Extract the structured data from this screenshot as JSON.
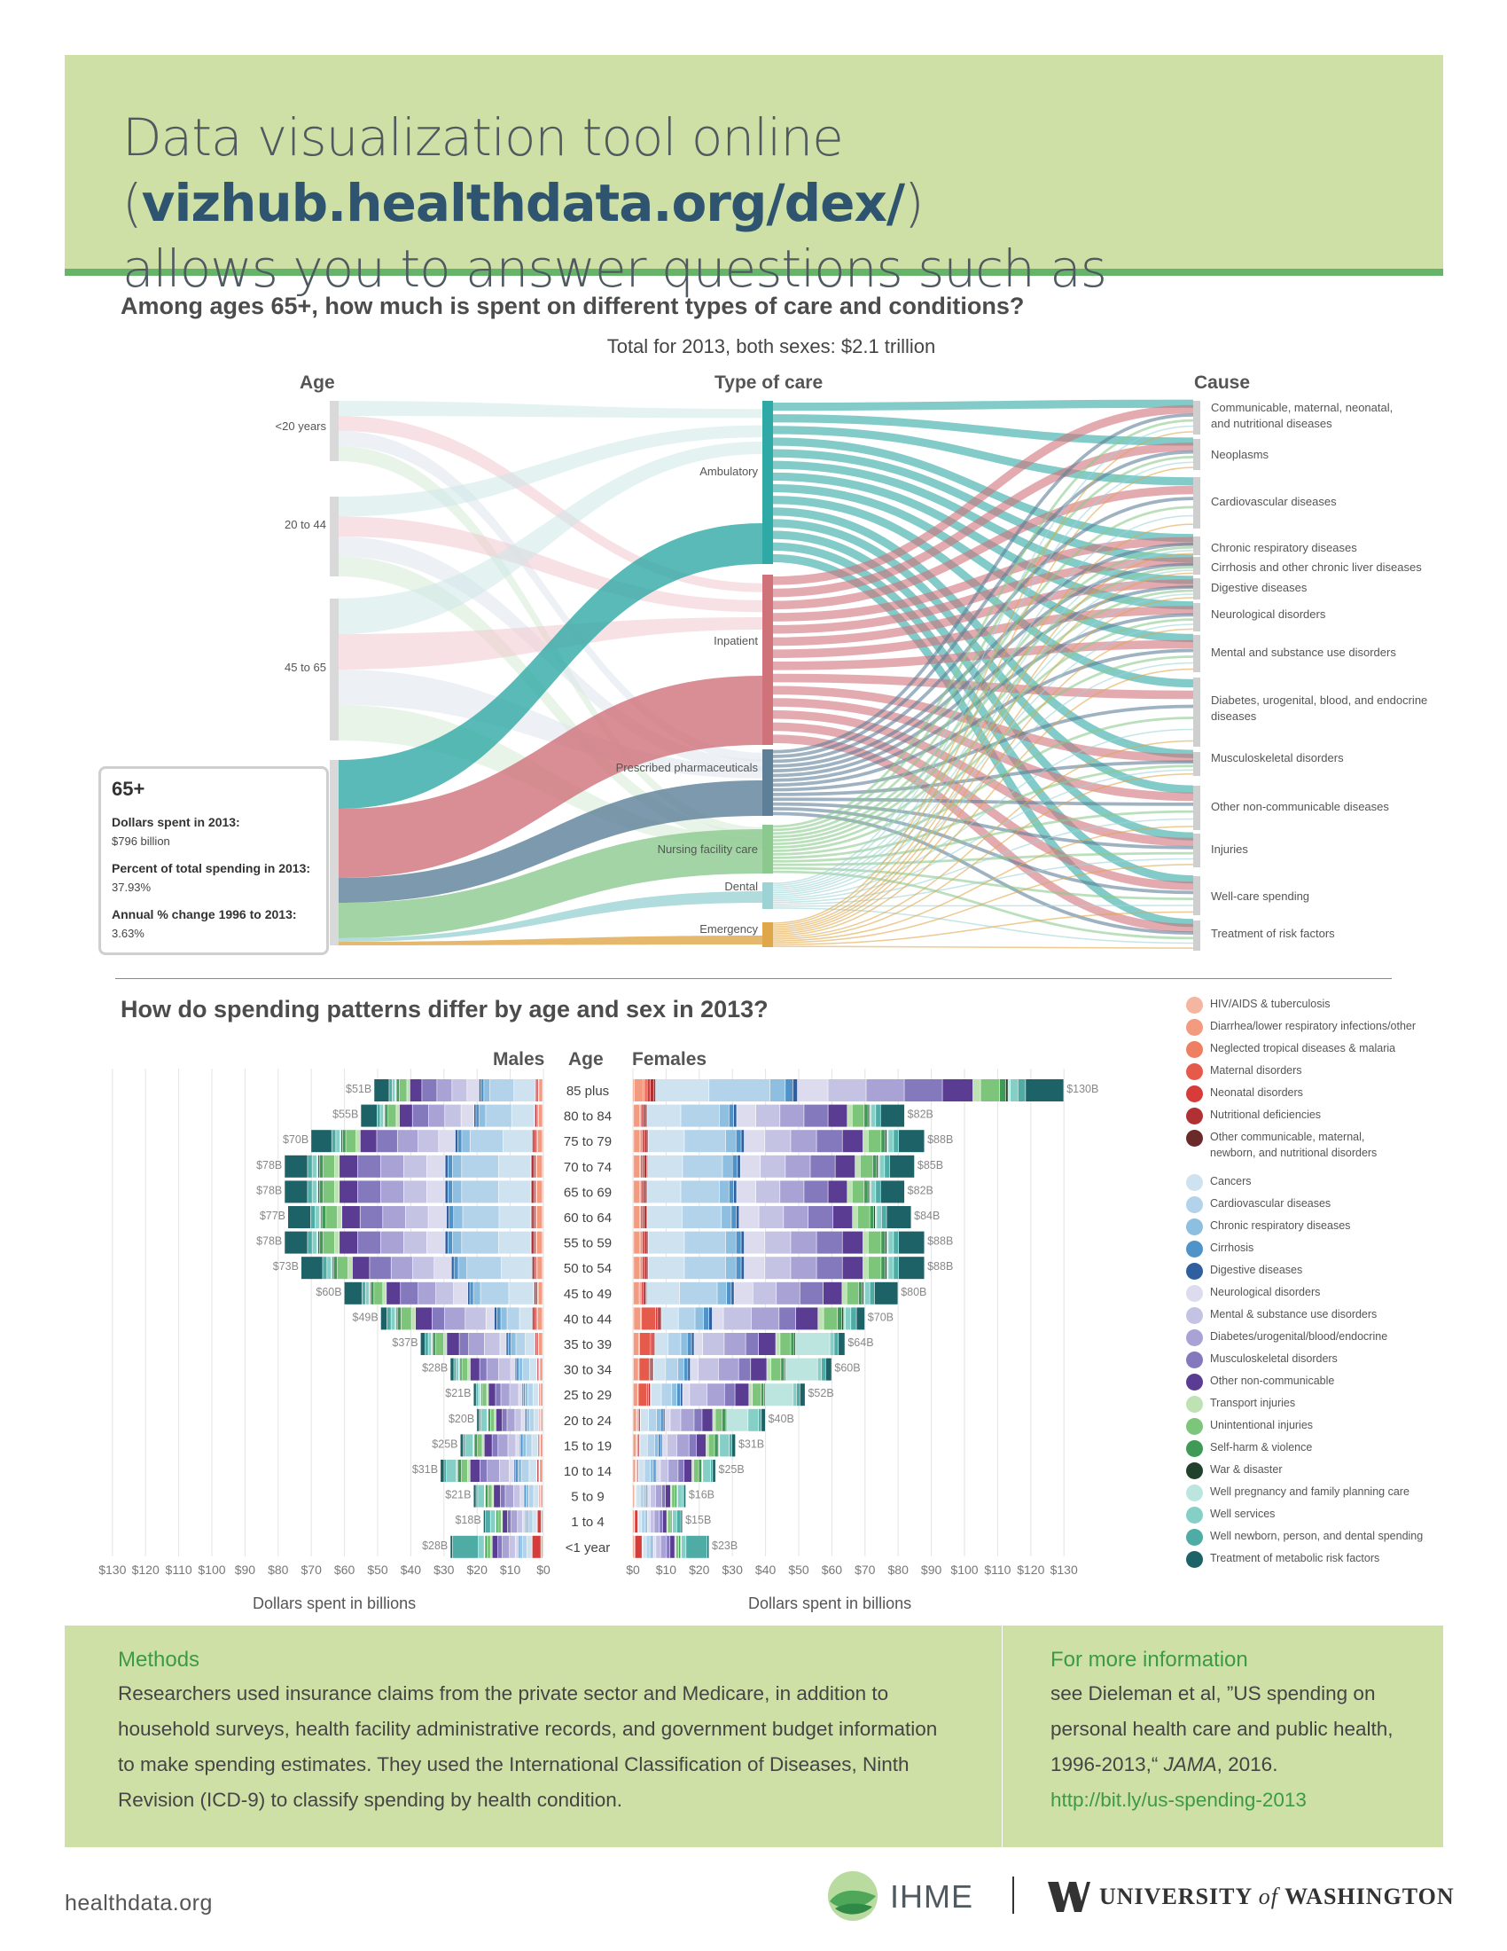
{
  "header": {
    "line1_prefix": "Data visualization tool online (",
    "url": "vizhub.healthdata.org/dex/",
    "line1_suffix": ")",
    "line2": "allows you to answer questions such as"
  },
  "sankey": {
    "question": "Among ages 65+, how much is spent on different types of care and conditions?",
    "subtitle": "Total for 2013, both sexes: $2.1 trillion",
    "age_heading": "Age",
    "care_heading": "Type of care",
    "cause_heading": "Cause",
    "ages": [
      "<20 years",
      "20 to 44",
      "45 to 65"
    ],
    "care_types": [
      "Ambulatory",
      "Inpatient",
      "Prescribed pharmaceuticals",
      "Nursing facility care",
      "Dental",
      "Emergency"
    ],
    "causes": [
      "Communicable, maternal, neonatal, and nutritional diseases",
      "Neoplasms",
      "Cardiovascular diseases",
      "Chronic respiratory diseases",
      "Cirrhosis and other chronic liver diseases",
      "Digestive diseases",
      "Neurological disorders",
      "Mental and substance use disorders",
      "Diabetes, urogenital, blood, and endocrine diseases",
      "Musculoskeletal disorders",
      "Other non-communicable diseases",
      "Injuries",
      "Well-care spending",
      "Treatment of risk factors"
    ],
    "care_colors": {
      "Ambulatory": "#2fa9a5",
      "Inpatient": "#d0727a",
      "Prescribed pharmaceuticals": "#5d7f98",
      "Nursing facility care": "#8cc98e",
      "Dental": "#9ed3d5",
      "Emergency": "#e0a64a"
    },
    "info": {
      "title": "65+",
      "l1": "Dollars spent in 2013:",
      "v1": "$796 billion",
      "l2": "Percent of total spending in 2013:",
      "v2": "37.93%",
      "l3": "Annual % change 1996 to 2013:",
      "v3": "3.63%"
    }
  },
  "bars_section": {
    "question": "How do spending patterns differ by age and sex in 2013?",
    "males_heading": "Males",
    "age_heading": "Age",
    "females_heading": "Females",
    "x_title": "Dollars spent in billions",
    "male_ticks": [
      "$130",
      "$120",
      "$110",
      "$100",
      "$90",
      "$80",
      "$70",
      "$60",
      "$50",
      "$40",
      "$30",
      "$20",
      "$10",
      "$0"
    ],
    "female_ticks": [
      "$0",
      "$10",
      "$20",
      "$30",
      "$40",
      "$50",
      "$60",
      "$70",
      "$80",
      "$90",
      "$100",
      "$110",
      "$120",
      "$130"
    ]
  },
  "chart_data": {
    "type": "bar",
    "orientation": "horizontal-stacked, back-to-back",
    "xlabel": "Dollars spent in billions",
    "xlim": [
      0,
      130
    ],
    "categories": [
      "85 plus",
      "80 to 84",
      "75 to 79",
      "70 to 74",
      "65 to 69",
      "60 to 64",
      "55 to 59",
      "50 to 54",
      "45 to 49",
      "40 to 44",
      "35 to 39",
      "30 to 34",
      "25 to 29",
      "20 to 24",
      "15 to 19",
      "10 to 14",
      "5 to 9",
      "1 to 4",
      "<1 year"
    ],
    "series": [
      {
        "name": "Males",
        "values": [
          51,
          55,
          70,
          78,
          78,
          77,
          78,
          73,
          60,
          49,
          37,
          28,
          21,
          20,
          25,
          31,
          21,
          18,
          28
        ]
      },
      {
        "name": "Females",
        "values": [
          130,
          82,
          88,
          85,
          82,
          84,
          88,
          88,
          80,
          70,
          64,
          60,
          52,
          40,
          31,
          25,
          16,
          15,
          23
        ]
      }
    ],
    "value_labels": {
      "males": [
        "$51B",
        "$55B",
        "$70B",
        "$78B",
        "$78B",
        "$77B",
        "$78B",
        "$73B",
        "$60B",
        "$49B",
        "$37B",
        "$28B",
        "$21B",
        "$20B",
        "$25B",
        "$31B",
        "$21B",
        "$18B",
        "$28B"
      ],
      "females": [
        "$130B",
        "$82B",
        "$88B",
        "$85B",
        "$82B",
        "$84B",
        "$88B",
        "$88B",
        "$80B",
        "$70B",
        "$64B",
        "$60B",
        "$52B",
        "$40B",
        "$31B",
        "$25B",
        "$16B",
        "$15B",
        "$23B"
      ]
    },
    "legend": [
      {
        "name": "HIV/AIDS & tuberculosis",
        "color": "#f4b6a0"
      },
      {
        "name": "Diarrhea/lower respiratory infections/other",
        "color": "#f29b80"
      },
      {
        "name": "Neglected tropical diseases & malaria",
        "color": "#ee7f62"
      },
      {
        "name": "Maternal disorders",
        "color": "#e55a4a"
      },
      {
        "name": "Neonatal disorders",
        "color": "#d63c3a"
      },
      {
        "name": "Nutritional deficiencies",
        "color": "#b03034"
      },
      {
        "name": "Other communicable, maternal, newborn, and nutritional disorders",
        "color": "#6b2a2a"
      },
      {
        "name": "Cancers",
        "color": "#cfe2f0"
      },
      {
        "name": "Cardiovascular diseases",
        "color": "#b3d3ea"
      },
      {
        "name": "Chronic respiratory diseases",
        "color": "#8ebfe0"
      },
      {
        "name": "Cirrhosis",
        "color": "#4f93c9"
      },
      {
        "name": "Digestive diseases",
        "color": "#2f5f9e"
      },
      {
        "name": "Neurological disorders",
        "color": "#dcdcee"
      },
      {
        "name": "Mental & substance use disorders",
        "color": "#c5c3e3"
      },
      {
        "name": "Diabetes/urogenital/blood/endocrine",
        "color": "#a8a3d4"
      },
      {
        "name": "Musculoskeletal disorders",
        "color": "#8479bd"
      },
      {
        "name": "Other non-communicable",
        "color": "#5a3d93"
      },
      {
        "name": "Transport injuries",
        "color": "#bfe2b5"
      },
      {
        "name": "Unintentional injuries",
        "color": "#7dc57a"
      },
      {
        "name": "Self-harm & violence",
        "color": "#3f9a55"
      },
      {
        "name": "War & disaster",
        "color": "#21412d"
      },
      {
        "name": "Well pregnancy and family planning care",
        "color": "#bde5df"
      },
      {
        "name": "Well services",
        "color": "#86cfc7"
      },
      {
        "name": "Well newborn, person, and dental spending",
        "color": "#4eaca5"
      },
      {
        "name": "Treatment of metabolic risk factors",
        "color": "#1c6266"
      }
    ]
  },
  "footer": {
    "methods_heading": "Methods",
    "methods_lines": [
      "Researchers used insurance claims from the private sector and Medicare, in addition to",
      "household surveys, health facility administrative records, and government budget information",
      "to make spending estimates. They used the International Classification of Diseases, Ninth",
      "Revision (ICD-9) to classify spending by health condition."
    ],
    "more_heading": "For more information",
    "more_lines": [
      "see Dieleman et al, ”US spending on",
      "personal health care and public health,",
      "1996-2013,“"
    ],
    "more_journal": "JAMA",
    "more_year": ", 2016.",
    "link": "http://bit.ly/us-spending-2013",
    "site": "healthdata.org",
    "ihme": "IHME",
    "uw_left": "UNIVERSITY",
    "uw_of": "of",
    "uw_right": "WASHINGTON"
  }
}
